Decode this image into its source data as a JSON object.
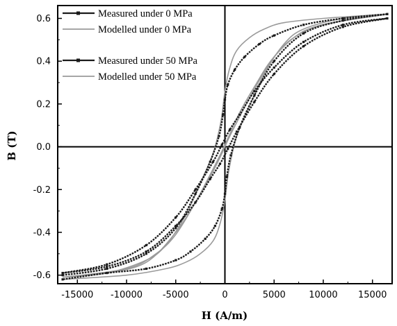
{
  "chart_data": {
    "type": "line",
    "xlabel": "H (A/m)",
    "ylabel": "B (T)",
    "xlim": [
      -17000,
      17000
    ],
    "ylim": [
      -0.64,
      0.66
    ],
    "x_ticks": [
      -15000,
      -10000,
      -5000,
      0,
      5000,
      10000,
      15000
    ],
    "y_ticks": [
      -0.6,
      -0.4,
      -0.2,
      0.0,
      0.2,
      0.4,
      0.6
    ],
    "x_tick_labels": [
      "-15000",
      "-10000",
      "-5000",
      "0",
      "5000",
      "10000",
      "15000"
    ],
    "y_tick_labels": [
      "-0.6",
      "-0.4",
      "-0.2",
      "0.0",
      "0.2",
      "0.4",
      "0.6"
    ],
    "grid": false,
    "legend_position": "top-left",
    "series": [
      {
        "name": "Measured under 0 MPa",
        "color": "#1a1a1a",
        "marker": "square",
        "upper_branch": [
          [
            -16500,
            -0.6
          ],
          [
            -12000,
            -0.57
          ],
          [
            -8000,
            -0.5
          ],
          [
            -5000,
            -0.38
          ],
          [
            -3000,
            -0.22
          ],
          [
            -1500,
            -0.07
          ],
          [
            -600,
            0.05
          ],
          [
            -200,
            0.15
          ],
          [
            0,
            0.22
          ],
          [
            300,
            0.29
          ],
          [
            1000,
            0.36
          ],
          [
            2000,
            0.42
          ],
          [
            3500,
            0.48
          ],
          [
            5000,
            0.52
          ],
          [
            8000,
            0.57
          ],
          [
            12000,
            0.6
          ],
          [
            16500,
            0.62
          ]
        ],
        "lower_branch": [
          [
            16500,
            0.62
          ],
          [
            12000,
            0.59
          ],
          [
            8000,
            0.53
          ],
          [
            5000,
            0.4
          ],
          [
            3000,
            0.24
          ],
          [
            1500,
            0.09
          ],
          [
            600,
            -0.04
          ],
          [
            200,
            -0.14
          ],
          [
            0,
            -0.22
          ],
          [
            -300,
            -0.29
          ],
          [
            -1000,
            -0.37
          ],
          [
            -2000,
            -0.43
          ],
          [
            -3500,
            -0.49
          ],
          [
            -5000,
            -0.53
          ],
          [
            -8000,
            -0.57
          ],
          [
            -12000,
            -0.59
          ],
          [
            -16500,
            -0.62
          ]
        ]
      },
      {
        "name": "Modelled under 0 MPa",
        "color": "#9a9a9a",
        "marker": "none",
        "upper_branch": [
          [
            -16500,
            -0.61
          ],
          [
            -12000,
            -0.59
          ],
          [
            -8000,
            -0.53
          ],
          [
            -6000,
            -0.46
          ],
          [
            -4000,
            -0.32
          ],
          [
            -2500,
            -0.17
          ],
          [
            -1200,
            -0.03
          ],
          [
            -400,
            0.12
          ],
          [
            0,
            0.26
          ],
          [
            500,
            0.37
          ],
          [
            1200,
            0.45
          ],
          [
            2500,
            0.51
          ],
          [
            4000,
            0.55
          ],
          [
            6000,
            0.58
          ],
          [
            10000,
            0.6
          ],
          [
            16500,
            0.62
          ]
        ],
        "lower_branch": [
          [
            16500,
            0.62
          ],
          [
            12000,
            0.6
          ],
          [
            8000,
            0.55
          ],
          [
            6000,
            0.48
          ],
          [
            4000,
            0.34
          ],
          [
            2500,
            0.19
          ],
          [
            1200,
            0.05
          ],
          [
            400,
            -0.11
          ],
          [
            0,
            -0.25
          ],
          [
            -500,
            -0.36
          ],
          [
            -1200,
            -0.44
          ],
          [
            -2500,
            -0.5
          ],
          [
            -4000,
            -0.54
          ],
          [
            -6000,
            -0.57
          ],
          [
            -10000,
            -0.6
          ],
          [
            -16500,
            -0.62
          ]
        ]
      },
      {
        "name": "Measured under 50 MPa",
        "color": "#1a1a1a",
        "marker": "square",
        "upper_branch": [
          [
            -16500,
            -0.59
          ],
          [
            -12000,
            -0.55
          ],
          [
            -8000,
            -0.46
          ],
          [
            -5000,
            -0.33
          ],
          [
            -3000,
            -0.2
          ],
          [
            -1200,
            -0.07
          ],
          [
            -300,
            0.01
          ],
          [
            500,
            0.08
          ],
          [
            1500,
            0.15
          ],
          [
            3000,
            0.26
          ],
          [
            5000,
            0.37
          ],
          [
            8000,
            0.49
          ],
          [
            12000,
            0.57
          ],
          [
            16500,
            0.6
          ]
        ],
        "lower_branch": [
          [
            16500,
            0.6
          ],
          [
            12000,
            0.56
          ],
          [
            8000,
            0.47
          ],
          [
            5000,
            0.34
          ],
          [
            3000,
            0.21
          ],
          [
            1200,
            0.07
          ],
          [
            300,
            -0.01
          ],
          [
            -500,
            -0.08
          ],
          [
            -1500,
            -0.15
          ],
          [
            -3000,
            -0.26
          ],
          [
            -5000,
            -0.37
          ],
          [
            -8000,
            -0.49
          ],
          [
            -12000,
            -0.56
          ],
          [
            -16500,
            -0.59
          ]
        ]
      },
      {
        "name": "Modelled under 50 MPa",
        "color": "#9a9a9a",
        "marker": "none",
        "upper_branch": [
          [
            -16500,
            -0.61
          ],
          [
            -12000,
            -0.59
          ],
          [
            -8000,
            -0.54
          ],
          [
            -5000,
            -0.4
          ],
          [
            -3000,
            -0.26
          ],
          [
            -1500,
            -0.14
          ],
          [
            -500,
            -0.05
          ],
          [
            500,
            0.05
          ],
          [
            1500,
            0.14
          ],
          [
            3000,
            0.27
          ],
          [
            5000,
            0.42
          ],
          [
            7000,
            0.51
          ],
          [
            10000,
            0.57
          ],
          [
            16500,
            0.62
          ]
        ],
        "lower_branch": [
          [
            16500,
            0.62
          ],
          [
            12000,
            0.59
          ],
          [
            8000,
            0.54
          ],
          [
            5000,
            0.42
          ],
          [
            3000,
            0.28
          ],
          [
            1500,
            0.16
          ],
          [
            500,
            0.06
          ],
          [
            -500,
            -0.04
          ],
          [
            -1500,
            -0.13
          ],
          [
            -3000,
            -0.26
          ],
          [
            -5000,
            -0.41
          ],
          [
            -7000,
            -0.5
          ],
          [
            -10000,
            -0.57
          ],
          [
            -16500,
            -0.61
          ]
        ]
      }
    ]
  }
}
